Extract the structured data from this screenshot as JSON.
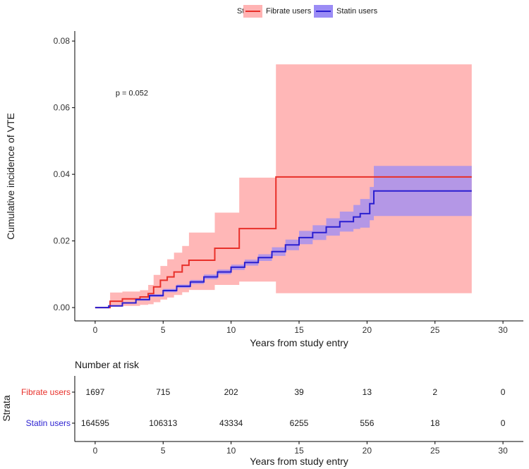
{
  "chart_data": {
    "type": "line",
    "subtype": "cumulative-incidence-step",
    "legend_title": "Strata",
    "legend_position": "top",
    "xlabel": "Years from study entry",
    "ylabel": "Cumulative incidence of VTE",
    "xlim": [
      -1.5,
      31.5
    ],
    "ylim": [
      -0.004,
      0.083
    ],
    "x_ticks": [
      0,
      5,
      10,
      15,
      20,
      25,
      30
    ],
    "y_ticks": [
      0.0,
      0.02,
      0.04,
      0.06,
      0.08
    ],
    "x_tick_labels": [
      "0",
      "5",
      "10",
      "15",
      "20",
      "25",
      "30"
    ],
    "y_tick_labels": [
      "0.00",
      "0.02",
      "0.04",
      "0.06",
      "0.08"
    ],
    "annotation": {
      "text": "p = 0.052",
      "x": 1.5,
      "y": 0.0645
    },
    "series": [
      {
        "name": "Fibrate users",
        "line_color": "#e8302a",
        "ci_color": "#ffb3b3",
        "x": [
          0,
          1.1,
          2.0,
          3.3,
          3.9,
          4.3,
          4.8,
          5.3,
          5.8,
          6.4,
          6.9,
          7.3,
          7.9,
          8.8,
          9.7,
          10.6,
          13.3,
          27.7
        ],
        "y": [
          0,
          0.0019,
          0.0026,
          0.0032,
          0.0042,
          0.0062,
          0.0082,
          0.0092,
          0.0107,
          0.0127,
          0.0142,
          0.0142,
          0.0142,
          0.0178,
          0.0178,
          0.0237,
          0.0392,
          0.0392
        ],
        "ci_lower": [
          0,
          0.0003,
          0.0005,
          0.0008,
          0.001,
          0.0016,
          0.0024,
          0.003,
          0.0038,
          0.0046,
          0.0053,
          0.0053,
          0.0053,
          0.0068,
          0.0068,
          0.0078,
          0.0043,
          0.0043
        ],
        "ci_upper": [
          0,
          0.0045,
          0.0048,
          0.0052,
          0.0068,
          0.0098,
          0.0125,
          0.0145,
          0.0165,
          0.0185,
          0.0225,
          0.0225,
          0.0225,
          0.0285,
          0.0285,
          0.039,
          0.073,
          0.073
        ]
      },
      {
        "name": "Statin users",
        "line_color": "#2a1fd0",
        "ci_color": "#9b8cf5",
        "x": [
          0,
          1,
          2,
          3,
          4,
          5,
          6,
          7,
          8,
          9,
          10,
          11,
          12,
          13,
          14,
          15,
          16,
          17,
          18,
          19,
          19.5,
          20.2,
          20.5,
          27.7
        ],
        "y": [
          0,
          0.0005,
          0.0014,
          0.0024,
          0.0036,
          0.0051,
          0.0064,
          0.0077,
          0.0092,
          0.0107,
          0.0121,
          0.0135,
          0.015,
          0.0168,
          0.0188,
          0.021,
          0.0225,
          0.0242,
          0.0258,
          0.0272,
          0.0282,
          0.0312,
          0.035,
          0.035
        ],
        "ci_lower": [
          0,
          0.0004,
          0.0012,
          0.0021,
          0.0032,
          0.0046,
          0.0059,
          0.0071,
          0.0085,
          0.01,
          0.0113,
          0.0126,
          0.014,
          0.0155,
          0.0172,
          0.019,
          0.0203,
          0.0216,
          0.0228,
          0.0236,
          0.024,
          0.0262,
          0.0275,
          0.0275
        ],
        "ci_upper": [
          0,
          0.0007,
          0.0016,
          0.0027,
          0.004,
          0.0056,
          0.0069,
          0.0083,
          0.0099,
          0.0114,
          0.0129,
          0.0144,
          0.016,
          0.0181,
          0.0204,
          0.023,
          0.0247,
          0.0268,
          0.0288,
          0.0308,
          0.0326,
          0.0362,
          0.0425,
          0.0425
        ]
      }
    ],
    "risk_table": {
      "title": "Number at risk",
      "y_axis_title": "Strata",
      "xlabel": "Years from study entry",
      "x_ticks": [
        0,
        5,
        10,
        15,
        20,
        25,
        30
      ],
      "x_tick_labels": [
        "0",
        "5",
        "10",
        "15",
        "20",
        "25",
        "30"
      ],
      "rows": [
        {
          "label": "Fibrate users",
          "color": "#e8302a",
          "values": [
            "1697",
            "715",
            "202",
            "39",
            "13",
            "2",
            "0"
          ]
        },
        {
          "label": "Statin users",
          "color": "#2a1fd0",
          "values": [
            "164595",
            "106313",
            "43334",
            "6255",
            "556",
            "18",
            "0"
          ]
        }
      ]
    }
  }
}
